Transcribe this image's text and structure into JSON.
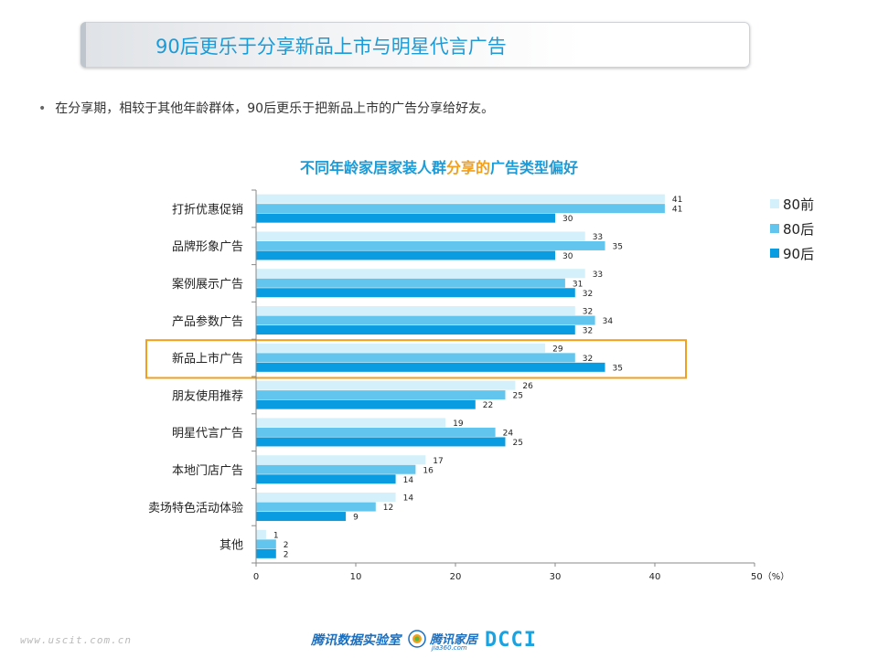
{
  "header": {
    "title": "90后更乐于分享新品上市与明星代言广告"
  },
  "bullet": {
    "text": "在分享期，相较于其他年龄群体，90后更乐于把新品上市的广告分享给好友。"
  },
  "chart_data": {
    "type": "bar",
    "orientation": "horizontal",
    "title_parts": [
      "不同年龄家居家装人群",
      "分享的",
      "广告类型偏好"
    ],
    "categories": [
      "打折优惠促销",
      "品牌形象广告",
      "案例展示广告",
      "产品参数广告",
      "新品上市广告",
      "朋友使用推荐",
      "明星代言广告",
      "本地门店广告",
      "卖场特色活动体验",
      "其他"
    ],
    "series": [
      {
        "name": "80前",
        "color": "#d4f0fa",
        "values": [
          41,
          33,
          33,
          32,
          29,
          26,
          19,
          17,
          14,
          1
        ]
      },
      {
        "name": "80后",
        "color": "#62c5ee",
        "values": [
          41,
          35,
          31,
          34,
          32,
          25,
          24,
          16,
          12,
          2
        ]
      },
      {
        "name": "90后",
        "color": "#0a9ce0",
        "values": [
          30,
          30,
          32,
          32,
          35,
          22,
          25,
          14,
          9,
          2
        ]
      }
    ],
    "x_ticks": [
      "0",
      "10",
      "20",
      "30",
      "40",
      "50（%）"
    ],
    "xlim": [
      0,
      50
    ],
    "highlight_category": "新品上市广告",
    "highlight_color": "#f0a01e",
    "legend_position": "top-right",
    "grid": false
  },
  "footer": {
    "url": "www.uscit.com.cn",
    "lab": "腾讯数据实验室",
    "brand": "腾讯家居",
    "brand_sub": "jia360.com",
    "dcci": "DCCI"
  }
}
